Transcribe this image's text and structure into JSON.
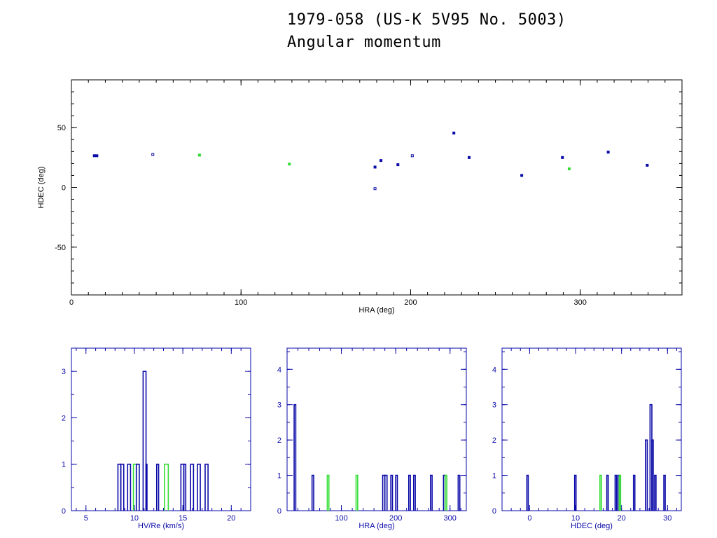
{
  "title": "1979-058 (US-K 5V95 No. 5003)",
  "subtitle": "Angular momentum",
  "colors": {
    "blue": "#0a0aa8",
    "green": "#33dd33",
    "black": "#000000"
  },
  "chart_data": [
    {
      "type": "scatter",
      "xlabel": "HRA (deg)",
      "ylabel": "HDEC (deg)",
      "xlim": [
        0,
        360
      ],
      "ylim": [
        -90,
        90
      ],
      "xticks": [
        0,
        100,
        200,
        300
      ],
      "yticks": [
        -50,
        0,
        50
      ],
      "points": [
        {
          "x": 13.5,
          "y": 26.5,
          "color": "blue",
          "style": "filled"
        },
        {
          "x": 15.0,
          "y": 26.5,
          "color": "blue",
          "style": "filled"
        },
        {
          "x": 48.0,
          "y": 27.5,
          "color": "blue",
          "style": "open"
        },
        {
          "x": 75.5,
          "y": 27.0,
          "color": "green",
          "style": "filled"
        },
        {
          "x": 128.5,
          "y": 19.5,
          "color": "green",
          "style": "filled"
        },
        {
          "x": 179.0,
          "y": 17.0,
          "color": "blue",
          "style": "filled"
        },
        {
          "x": 179.0,
          "y": -1.0,
          "color": "blue",
          "style": "open"
        },
        {
          "x": 182.5,
          "y": 22.5,
          "color": "blue",
          "style": "filled"
        },
        {
          "x": 192.5,
          "y": 19.0,
          "color": "blue",
          "style": "filled"
        },
        {
          "x": 201.0,
          "y": 26.5,
          "color": "blue",
          "style": "open"
        },
        {
          "x": 225.5,
          "y": 45.5,
          "color": "blue",
          "style": "filled"
        },
        {
          "x": 234.5,
          "y": 25.0,
          "color": "blue",
          "style": "filled"
        },
        {
          "x": 265.5,
          "y": 10.0,
          "color": "blue",
          "style": "filled"
        },
        {
          "x": 289.5,
          "y": 25.0,
          "color": "blue",
          "style": "filled"
        },
        {
          "x": 293.5,
          "y": 15.5,
          "color": "green",
          "style": "filled"
        },
        {
          "x": 316.5,
          "y": 29.5,
          "color": "blue",
          "style": "filled"
        },
        {
          "x": 339.5,
          "y": 18.5,
          "color": "blue",
          "style": "filled"
        }
      ]
    },
    {
      "type": "bar",
      "subtype": "histogram",
      "xlabel": "HV/Re (km/s)",
      "ylabel": "",
      "xlim": [
        3.5,
        22
      ],
      "ylim": [
        0,
        3.5
      ],
      "xticks": [
        5,
        10,
        15,
        20
      ],
      "yticks": [
        0,
        1,
        2,
        3
      ],
      "bins": [
        {
          "x0": 8.3,
          "x1": 8.6,
          "value": 1,
          "color": "blue"
        },
        {
          "x0": 8.6,
          "x1": 8.9,
          "value": 1,
          "color": "blue"
        },
        {
          "x0": 9.3,
          "x1": 9.6,
          "value": 1,
          "color": "blue"
        },
        {
          "x0": 9.9,
          "x1": 10.2,
          "value": 1,
          "color": "green"
        },
        {
          "x0": 10.2,
          "x1": 10.5,
          "value": 1,
          "color": "blue"
        },
        {
          "x0": 10.9,
          "x1": 11.2,
          "value": 3,
          "color": "blue"
        },
        {
          "x0": 11.2,
          "x1": 11.3,
          "value": 1,
          "color": "blue"
        },
        {
          "x0": 12.3,
          "x1": 12.5,
          "value": 1,
          "color": "blue"
        },
        {
          "x0": 13.1,
          "x1": 13.5,
          "value": 1,
          "color": "green"
        },
        {
          "x0": 14.8,
          "x1": 15.1,
          "value": 1,
          "color": "blue"
        },
        {
          "x0": 15.1,
          "x1": 15.3,
          "value": 1,
          "color": "blue"
        },
        {
          "x0": 15.8,
          "x1": 16.1,
          "value": 1,
          "color": "blue"
        },
        {
          "x0": 16.5,
          "x1": 16.8,
          "value": 1,
          "color": "blue"
        },
        {
          "x0": 17.3,
          "x1": 17.6,
          "value": 1,
          "color": "blue"
        }
      ]
    },
    {
      "type": "bar",
      "subtype": "histogram",
      "xlabel": "HRA (deg)",
      "ylabel": "",
      "xlim": [
        0,
        330
      ],
      "ylim": [
        0,
        4.6
      ],
      "xticks": [
        100,
        200,
        300
      ],
      "yticks": [
        0,
        1,
        2,
        3,
        4
      ],
      "bins": [
        {
          "x0": 13,
          "x1": 16,
          "value": 3,
          "color": "blue"
        },
        {
          "x0": 46,
          "x1": 49,
          "value": 1,
          "color": "blue"
        },
        {
          "x0": 74,
          "x1": 77,
          "value": 1,
          "color": "green"
        },
        {
          "x0": 127,
          "x1": 130,
          "value": 1,
          "color": "green"
        },
        {
          "x0": 176,
          "x1": 180,
          "value": 1,
          "color": "blue"
        },
        {
          "x0": 180,
          "x1": 184,
          "value": 1,
          "color": "blue"
        },
        {
          "x0": 191,
          "x1": 194,
          "value": 1,
          "color": "blue"
        },
        {
          "x0": 200,
          "x1": 203,
          "value": 1,
          "color": "blue"
        },
        {
          "x0": 224,
          "x1": 227,
          "value": 1,
          "color": "blue"
        },
        {
          "x0": 233,
          "x1": 236,
          "value": 1,
          "color": "blue"
        },
        {
          "x0": 264,
          "x1": 267,
          "value": 1,
          "color": "blue"
        },
        {
          "x0": 288,
          "x1": 291,
          "value": 1,
          "color": "blue"
        },
        {
          "x0": 291,
          "x1": 294,
          "value": 1,
          "color": "green"
        },
        {
          "x0": 315,
          "x1": 318,
          "value": 1,
          "color": "blue"
        }
      ]
    },
    {
      "type": "bar",
      "subtype": "histogram",
      "xlabel": "HDEC (deg)",
      "ylabel": "",
      "xlim": [
        -6,
        33
      ],
      "ylim": [
        0,
        4.6
      ],
      "xticks": [
        0,
        10,
        20,
        30
      ],
      "yticks": [
        0,
        1,
        2,
        3,
        4
      ],
      "bins": [
        {
          "x0": -0.6,
          "x1": -0.3,
          "value": 1,
          "color": "blue"
        },
        {
          "x0": 9.8,
          "x1": 10.1,
          "value": 1,
          "color": "blue"
        },
        {
          "x0": 15.3,
          "x1": 15.6,
          "value": 1,
          "color": "green"
        },
        {
          "x0": 16.8,
          "x1": 17.1,
          "value": 1,
          "color": "blue"
        },
        {
          "x0": 18.6,
          "x1": 18.9,
          "value": 1,
          "color": "blue"
        },
        {
          "x0": 19.2,
          "x1": 19.5,
          "value": 1,
          "color": "blue"
        },
        {
          "x0": 19.5,
          "x1": 19.8,
          "value": 1,
          "color": "green"
        },
        {
          "x0": 22.6,
          "x1": 22.9,
          "value": 1,
          "color": "blue"
        },
        {
          "x0": 25.2,
          "x1": 25.6,
          "value": 2,
          "color": "blue"
        },
        {
          "x0": 26.2,
          "x1": 26.6,
          "value": 3,
          "color": "blue"
        },
        {
          "x0": 26.6,
          "x1": 26.9,
          "value": 2,
          "color": "blue"
        },
        {
          "x0": 27.2,
          "x1": 27.5,
          "value": 1,
          "color": "blue"
        },
        {
          "x0": 29.2,
          "x1": 29.5,
          "value": 1,
          "color": "blue"
        }
      ]
    }
  ]
}
